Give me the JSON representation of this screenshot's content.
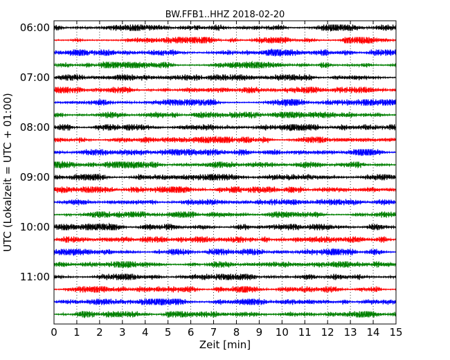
{
  "chart_data": {
    "type": "line",
    "title": "BW.FFB1..HHZ 2018-02-20",
    "xlabel": "Zeit  [min]",
    "ylabel": "UTC (Lokalzeit = UTC + 01:00)",
    "x_ticks": [
      "0",
      "1",
      "2",
      "3",
      "4",
      "5",
      "6",
      "7",
      "8",
      "9",
      "10",
      "11",
      "12",
      "13",
      "14",
      "15"
    ],
    "xlim": [
      0,
      15
    ],
    "x_grid": "dotted vertical lines at each minute",
    "y_ticks": [
      "06:00",
      "07:00",
      "08:00",
      "09:00",
      "10:00",
      "11:00"
    ],
    "trace_interval_minutes": 15,
    "trace_start": "06:00",
    "trace_count": 24,
    "color_cycle": [
      "#000000",
      "#ff0000",
      "#0000ff",
      "#008000"
    ],
    "background": "#ffffff"
  }
}
